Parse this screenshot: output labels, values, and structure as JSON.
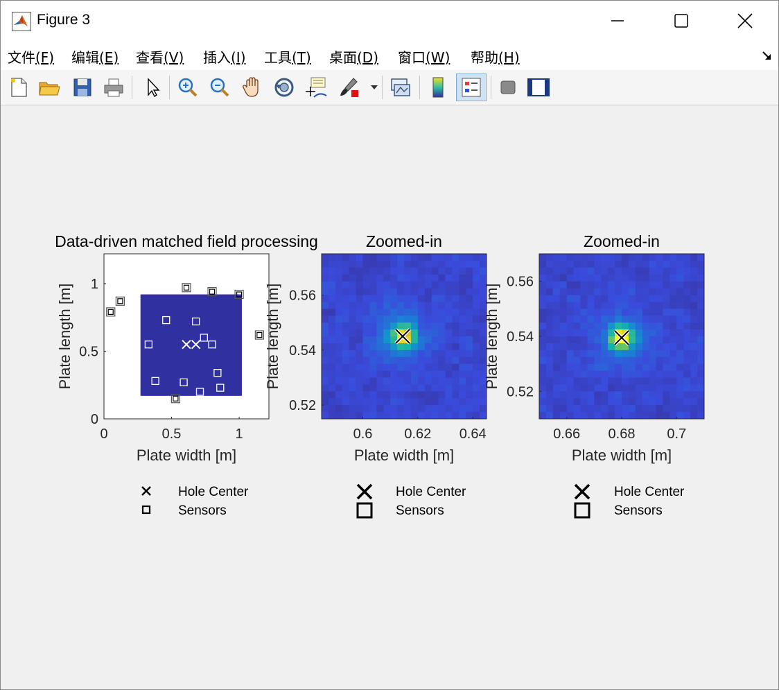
{
  "window": {
    "title": "Figure 3",
    "controls": [
      "minimize",
      "maximize",
      "close"
    ]
  },
  "menu": [
    {
      "label": "文件",
      "key": "(F)"
    },
    {
      "label": "编辑",
      "key": "(E)"
    },
    {
      "label": "查看",
      "key": "(V)"
    },
    {
      "label": "插入",
      "key": "(I)"
    },
    {
      "label": "工具",
      "key": "(T)"
    },
    {
      "label": "桌面",
      "key": "(D)"
    },
    {
      "label": "窗口",
      "key": "(W)"
    },
    {
      "label": "帮助",
      "key": "(H)"
    }
  ],
  "toolbar": {
    "icons": [
      "new-figure-icon",
      "open-file-icon",
      "save-icon",
      "print-icon",
      "edit-plot-arrow-icon",
      "zoom-in-icon",
      "zoom-out-icon",
      "pan-hand-icon",
      "rotate-3d-icon",
      "data-cursor-icon",
      "brush-icon",
      "brush-dropdown-icon",
      "link-plot-icon",
      "insert-colorbar-icon",
      "insert-legend-icon",
      "hide-plot-tools-icon",
      "show-plot-tools-icon"
    ],
    "active": "insert-legend-icon"
  },
  "chart_data": [
    {
      "type": "heatmap",
      "title": "Data-driven matched field processing",
      "xlabel": "Plate width [m]",
      "ylabel": "Plate length [m]",
      "xlim": [
        0,
        1.22
      ],
      "ylim": [
        0,
        1.22
      ],
      "xticks": [
        "0",
        "0.5",
        "1"
      ],
      "yticks": [
        "0",
        "0.5",
        "1"
      ],
      "heatmap_extent": {
        "x": [
          0.27,
          1.02
        ],
        "y": [
          0.17,
          0.92
        ]
      },
      "hole_centers": [
        [
          0.61,
          0.55
        ],
        [
          0.68,
          0.55
        ]
      ],
      "sensors_outside": [
        [
          0.05,
          0.79
        ],
        [
          0.12,
          0.87
        ],
        [
          0.61,
          0.97
        ],
        [
          0.8,
          0.94
        ],
        [
          1.0,
          0.92
        ],
        [
          1.15,
          0.62
        ],
        [
          0.53,
          0.15
        ]
      ],
      "sensors_inside": [
        [
          0.46,
          0.73
        ],
        [
          0.68,
          0.72
        ],
        [
          0.74,
          0.6
        ],
        [
          0.33,
          0.55
        ],
        [
          0.8,
          0.55
        ],
        [
          0.84,
          0.34
        ],
        [
          0.38,
          0.28
        ],
        [
          0.59,
          0.27
        ],
        [
          0.86,
          0.23
        ],
        [
          0.71,
          0.2
        ]
      ],
      "legend": {
        "placement": "below",
        "entries": [
          "Hole Center",
          "Sensors"
        ]
      }
    },
    {
      "type": "heatmap",
      "title": "Zoomed-in",
      "xlabel": "Plate width [m]",
      "ylabel": "Plate length [m]",
      "xlim": [
        0.585,
        0.645
      ],
      "ylim": [
        0.515,
        0.575
      ],
      "xticks": [
        "0.6",
        "0.62",
        "0.64"
      ],
      "yticks": [
        "0.52",
        "0.54",
        "0.56"
      ],
      "peak": [
        0.6145,
        0.545
      ],
      "peak_color": "#d4b830",
      "hole_center": [
        0.6145,
        0.545
      ],
      "legend": {
        "placement": "below",
        "entries": [
          "Hole Center",
          "Sensors"
        ]
      }
    },
    {
      "type": "heatmap",
      "title": "Zoomed-in",
      "xlabel": "Plate width [m]",
      "ylabel": "Plate length [m]",
      "xlim": [
        0.65,
        0.71
      ],
      "ylim": [
        0.51,
        0.57
      ],
      "xticks": [
        "0.66",
        "0.68",
        "0.7"
      ],
      "yticks": [
        "0.52",
        "0.54",
        "0.56"
      ],
      "peak": [
        0.68,
        0.5395
      ],
      "peak_color": "#f0d020",
      "hole_center": [
        0.68,
        0.5395
      ],
      "legend": {
        "placement": "below",
        "entries": [
          "Hole Center",
          "Sensors"
        ]
      }
    }
  ],
  "colors": {
    "field_dark": "#3130a0",
    "field_mid": "#3a48d8",
    "peak_green": "#3cb878"
  }
}
